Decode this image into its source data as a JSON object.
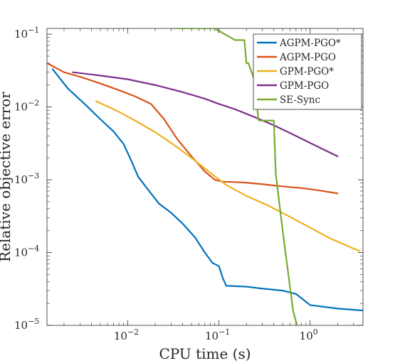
{
  "chart_data": {
    "type": "line",
    "title": "",
    "xlabel": "CPU time (s)",
    "ylabel": "Relative objective error",
    "xscale": "log",
    "yscale": "log",
    "xlim": [
      0.0013,
      3.8
    ],
    "ylim": [
      1e-05,
      0.12
    ],
    "xticks": [
      {
        "value": 0.01,
        "base": "10",
        "exp": "−2"
      },
      {
        "value": 0.1,
        "base": "10",
        "exp": "−1"
      },
      {
        "value": 1,
        "base": "10",
        "exp": "0"
      }
    ],
    "yticks": [
      {
        "value": 1e-05,
        "base": "10",
        "exp": "−5"
      },
      {
        "value": 0.0001,
        "base": "10",
        "exp": "−4"
      },
      {
        "value": 0.001,
        "base": "10",
        "exp": "−3"
      },
      {
        "value": 0.01,
        "base": "10",
        "exp": "−2"
      },
      {
        "value": 0.1,
        "base": "10",
        "exp": "−1"
      }
    ],
    "grid": false,
    "legend_position": "top-right",
    "series": [
      {
        "name": "AGPM-PGO*",
        "color": "#0072BD",
        "x": [
          0.0015,
          0.0022,
          0.0035,
          0.005,
          0.007,
          0.009,
          0.011,
          0.013,
          0.017,
          0.022,
          0.03,
          0.04,
          0.055,
          0.07,
          0.085,
          0.1,
          0.11,
          0.12,
          0.2,
          0.3,
          0.5,
          0.7,
          1.0,
          2.0,
          3.8
        ],
        "y": [
          0.033,
          0.018,
          0.0105,
          0.0068,
          0.0046,
          0.0031,
          0.0018,
          0.0011,
          0.00071,
          0.00047,
          0.00035,
          0.00025,
          0.00016,
          0.0001,
          7.2e-05,
          6.5e-05,
          4.5e-05,
          3.5e-05,
          3.4e-05,
          3.2e-05,
          3e-05,
          2.7e-05,
          1.9e-05,
          1.7e-05,
          1.6e-05
        ]
      },
      {
        "name": "AGPM-PGO",
        "color": "#D95319",
        "x": [
          0.0013,
          0.002,
          0.003,
          0.005,
          0.008,
          0.012,
          0.018,
          0.025,
          0.035,
          0.05,
          0.07,
          0.09,
          0.11,
          0.15,
          0.2,
          0.3,
          0.5,
          0.8,
          1.2,
          2.0
        ],
        "y": [
          0.04,
          0.03,
          0.026,
          0.021,
          0.017,
          0.014,
          0.011,
          0.0068,
          0.0036,
          0.0021,
          0.0013,
          0.001,
          0.00094,
          0.00093,
          0.00091,
          0.00087,
          0.00081,
          0.00077,
          0.00072,
          0.00065
        ]
      },
      {
        "name": "GPM-PGO*",
        "color": "#EDB120",
        "x": [
          0.0045,
          0.008,
          0.012,
          0.02,
          0.03,
          0.05,
          0.08,
          0.12,
          0.2,
          0.35,
          0.6,
          1.0,
          1.6,
          2.5,
          3.5
        ],
        "y": [
          0.012,
          0.0086,
          0.0065,
          0.0045,
          0.0032,
          0.002,
          0.00125,
          0.00085,
          0.0006,
          0.00044,
          0.00031,
          0.00022,
          0.00016,
          0.000125,
          0.000105
        ]
      },
      {
        "name": "GPM-PGO",
        "color": "#7E2F8E",
        "x": [
          0.0025,
          0.005,
          0.01,
          0.02,
          0.04,
          0.07,
          0.1,
          0.15,
          0.25,
          0.4,
          0.7,
          1.0,
          1.5,
          2.0
        ],
        "y": [
          0.03,
          0.027,
          0.024,
          0.02,
          0.016,
          0.013,
          0.011,
          0.0093,
          0.0072,
          0.0056,
          0.004,
          0.0032,
          0.0025,
          0.0021
        ]
      },
      {
        "name": "SE-Sync",
        "color": "#77AC30",
        "x": [
          0.032,
          0.09,
          0.15,
          0.19,
          0.2,
          0.21,
          0.25,
          0.27,
          0.28,
          0.3,
          0.4,
          0.42,
          0.5,
          0.62,
          0.65,
          0.8
        ],
        "y": [
          0.12,
          0.12,
          0.083,
          0.083,
          0.04,
          0.04,
          0.022,
          0.0067,
          0.0065,
          0.0065,
          0.0065,
          0.0012,
          0.0002,
          2.5e-05,
          1.6e-05,
          6e-06
        ]
      }
    ]
  }
}
